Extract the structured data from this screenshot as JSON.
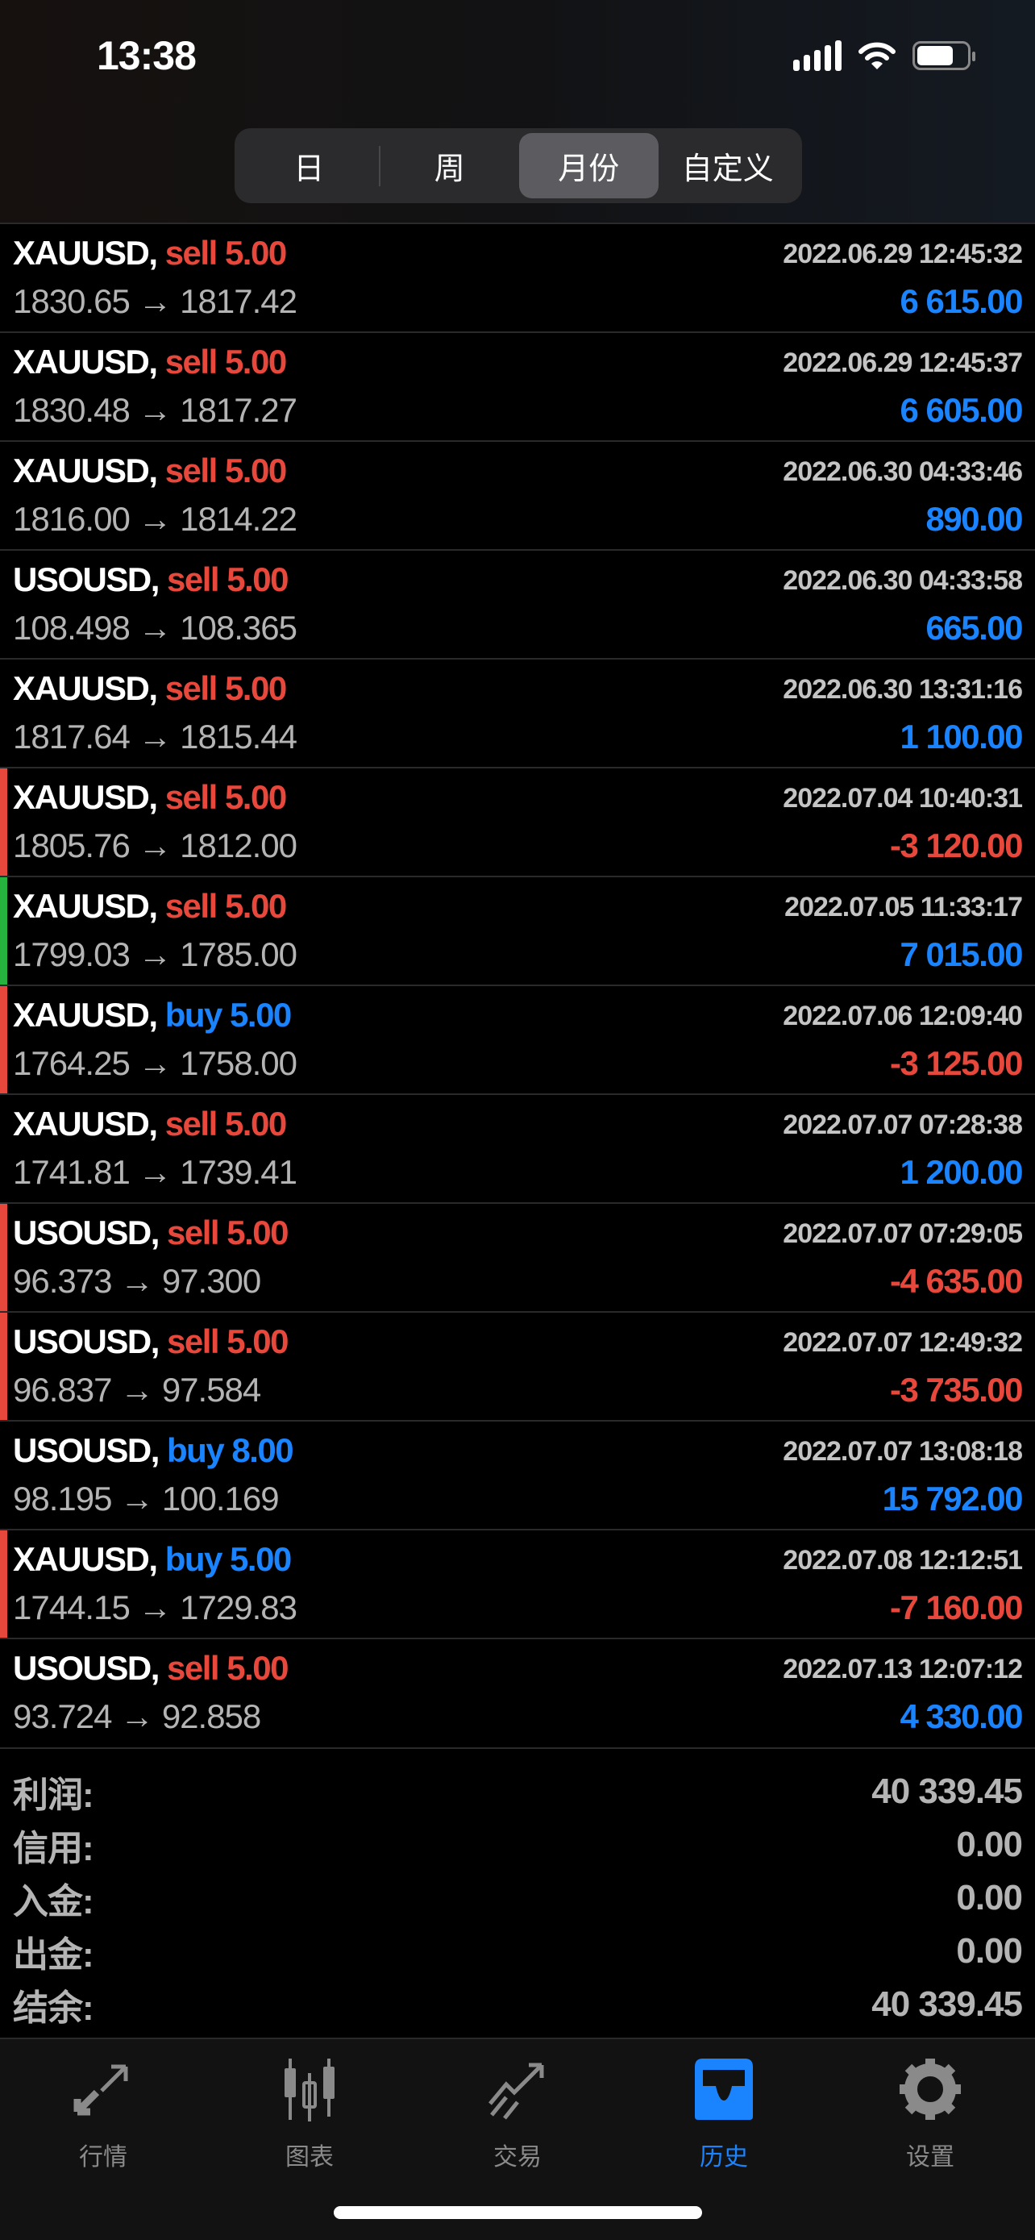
{
  "status_bar": {
    "time": "13:38"
  },
  "period_tabs": [
    {
      "label": "日",
      "active": false
    },
    {
      "label": "周",
      "active": false
    },
    {
      "label": "月份",
      "active": true
    },
    {
      "label": "自定义",
      "active": false
    }
  ],
  "colors": {
    "sell": "#e8483b",
    "buy": "#1a84ff",
    "positive": "#1a84ff",
    "negative": "#e8483b",
    "marker_red": "#e8483b",
    "marker_green": "#27b43e"
  },
  "deals": [
    {
      "symbol": "XAUUSD,",
      "side": "sell",
      "volume": "5.00",
      "date": "2022.06.29 12:45:32",
      "open": "1830.65",
      "close": "1817.42",
      "profit": "6 615.00",
      "marker": ""
    },
    {
      "symbol": "XAUUSD,",
      "side": "sell",
      "volume": "5.00",
      "date": "2022.06.29 12:45:37",
      "open": "1830.48",
      "close": "1817.27",
      "profit": "6 605.00",
      "marker": ""
    },
    {
      "symbol": "XAUUSD,",
      "side": "sell",
      "volume": "5.00",
      "date": "2022.06.30 04:33:46",
      "open": "1816.00",
      "close": "1814.22",
      "profit": "890.00",
      "marker": ""
    },
    {
      "symbol": "USOUSD,",
      "side": "sell",
      "volume": "5.00",
      "date": "2022.06.30 04:33:58",
      "open": "108.498",
      "close": "108.365",
      "profit": "665.00",
      "marker": ""
    },
    {
      "symbol": "XAUUSD,",
      "side": "sell",
      "volume": "5.00",
      "date": "2022.06.30 13:31:16",
      "open": "1817.64",
      "close": "1815.44",
      "profit": "1 100.00",
      "marker": ""
    },
    {
      "symbol": "XAUUSD,",
      "side": "sell",
      "volume": "5.00",
      "date": "2022.07.04 10:40:31",
      "open": "1805.76",
      "close": "1812.00",
      "profit": "-3 120.00",
      "marker": "red"
    },
    {
      "symbol": "XAUUSD,",
      "side": "sell",
      "volume": "5.00",
      "date": "2022.07.05 11:33:17",
      "open": "1799.03",
      "close": "1785.00",
      "profit": "7 015.00",
      "marker": "green"
    },
    {
      "symbol": "XAUUSD,",
      "side": "buy",
      "volume": "5.00",
      "date": "2022.07.06 12:09:40",
      "open": "1764.25",
      "close": "1758.00",
      "profit": "-3 125.00",
      "marker": "red"
    },
    {
      "symbol": "XAUUSD,",
      "side": "sell",
      "volume": "5.00",
      "date": "2022.07.07 07:28:38",
      "open": "1741.81",
      "close": "1739.41",
      "profit": "1 200.00",
      "marker": ""
    },
    {
      "symbol": "USOUSD,",
      "side": "sell",
      "volume": "5.00",
      "date": "2022.07.07 07:29:05",
      "open": "96.373",
      "close": "97.300",
      "profit": "-4 635.00",
      "marker": "red"
    },
    {
      "symbol": "USOUSD,",
      "side": "sell",
      "volume": "5.00",
      "date": "2022.07.07 12:49:32",
      "open": "96.837",
      "close": "97.584",
      "profit": "-3 735.00",
      "marker": "red"
    },
    {
      "symbol": "USOUSD,",
      "side": "buy",
      "volume": "8.00",
      "date": "2022.07.07 13:08:18",
      "open": "98.195",
      "close": "100.169",
      "profit": "15 792.00",
      "marker": ""
    },
    {
      "symbol": "XAUUSD,",
      "side": "buy",
      "volume": "5.00",
      "date": "2022.07.08 12:12:51",
      "open": "1744.15",
      "close": "1729.83",
      "profit": "-7 160.00",
      "marker": "red"
    },
    {
      "symbol": "USOUSD,",
      "side": "sell",
      "volume": "5.00",
      "date": "2022.07.13 12:07:12",
      "open": "93.724",
      "close": "92.858",
      "profit": "4 330.00",
      "marker": ""
    }
  ],
  "arrow": "→",
  "summary": [
    {
      "label": "利润:",
      "value": "40 339.45"
    },
    {
      "label": "信用:",
      "value": "0.00"
    },
    {
      "label": "入金:",
      "value": "0.00"
    },
    {
      "label": "出金:",
      "value": "0.00"
    },
    {
      "label": "结余:",
      "value": "40 339.45"
    }
  ],
  "tab_bar": [
    {
      "label": "行情",
      "icon": "quotes-arrows-icon",
      "active": false
    },
    {
      "label": "图表",
      "icon": "candlestick-chart-icon",
      "active": false
    },
    {
      "label": "交易",
      "icon": "trade-trend-icon",
      "active": false
    },
    {
      "label": "历史",
      "icon": "history-inbox-icon",
      "active": true
    },
    {
      "label": "设置",
      "icon": "gear-icon",
      "active": false
    }
  ]
}
